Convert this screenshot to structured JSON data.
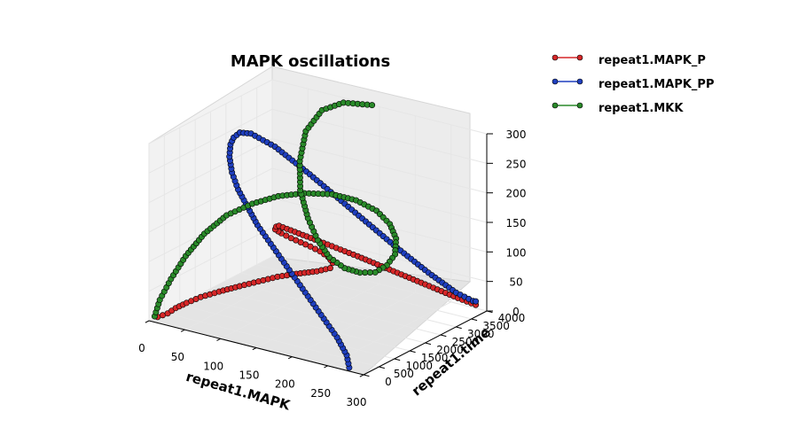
{
  "chart_data": {
    "type": "line",
    "projection": "3d",
    "title": "MAPK oscillations",
    "xlabel": "repeat1.MAPK",
    "ylabel": "repeat1.time",
    "zlabel": "",
    "xlim": [
      0,
      300
    ],
    "ylim": [
      0,
      4000
    ],
    "zlim": [
      0,
      300
    ],
    "x_ticks": [
      "0",
      "50",
      "100",
      "150",
      "200",
      "250",
      "300"
    ],
    "y_ticks": [
      "0",
      "500",
      "1000",
      "1500",
      "2000",
      "2500",
      "3000",
      "3500",
      "4000"
    ],
    "z_ticks": [
      "0",
      "50",
      "100",
      "150",
      "200",
      "250",
      "300"
    ],
    "grid": true,
    "legend_position": "upper-right outside",
    "markers": true,
    "series": [
      {
        "name": "repeat1.MAPK_P",
        "color": "#d62728",
        "points": [
          [
            10,
            50,
            8
          ],
          [
            15,
            260,
            10
          ],
          [
            15,
            520,
            12
          ],
          [
            18,
            800,
            14
          ],
          [
            25,
            1100,
            18
          ],
          [
            40,
            1350,
            25
          ],
          [
            60,
            1550,
            35
          ],
          [
            80,
            1700,
            45
          ],
          [
            100,
            1850,
            55
          ],
          [
            120,
            2000,
            62
          ],
          [
            140,
            2200,
            67
          ],
          [
            150,
            2400,
            70
          ],
          [
            145,
            2600,
            72
          ],
          [
            130,
            2800,
            72
          ],
          [
            110,
            3000,
            70
          ],
          [
            90,
            3150,
            68
          ],
          [
            70,
            3300,
            65
          ],
          [
            50,
            3450,
            62
          ],
          [
            30,
            3600,
            60
          ],
          [
            15,
            3750,
            58
          ],
          [
            10,
            3900,
            57
          ],
          [
            10,
            3990,
            56
          ],
          [
            60,
            3990,
            48
          ],
          [
            120,
            3990,
            38
          ],
          [
            170,
            3990,
            28
          ],
          [
            220,
            3990,
            18
          ],
          [
            260,
            3990,
            10
          ],
          [
            285,
            3990,
            6
          ]
        ]
      },
      {
        "name": "repeat1.MAPK_PP",
        "color": "#1f3fbf",
        "points": [
          [
            280,
            0,
            6
          ],
          [
            270,
            150,
            20
          ],
          [
            250,
            300,
            40
          ],
          [
            225,
            450,
            60
          ],
          [
            200,
            600,
            80
          ],
          [
            175,
            750,
            100
          ],
          [
            150,
            900,
            120
          ],
          [
            125,
            1050,
            140
          ],
          [
            100,
            1200,
            160
          ],
          [
            80,
            1350,
            180
          ],
          [
            60,
            1500,
            200
          ],
          [
            45,
            1650,
            220
          ],
          [
            35,
            1800,
            240
          ],
          [
            30,
            1950,
            255
          ],
          [
            28,
            2100,
            262
          ],
          [
            28,
            2300,
            265
          ],
          [
            35,
            2500,
            260
          ],
          [
            60,
            2700,
            240
          ],
          [
            100,
            2900,
            200
          ],
          [
            150,
            3100,
            150
          ],
          [
            200,
            3300,
            100
          ],
          [
            240,
            3500,
            60
          ],
          [
            270,
            3700,
            30
          ],
          [
            285,
            3900,
            15
          ],
          [
            285,
            3990,
            12
          ]
        ]
      },
      {
        "name": "repeat1.MKK",
        "color": "#2a8a2a",
        "points": [
          [
            8,
            0,
            10
          ],
          [
            10,
            120,
            35
          ],
          [
            20,
            250,
            70
          ],
          [
            35,
            380,
            110
          ],
          [
            55,
            520,
            150
          ],
          [
            80,
            660,
            185
          ],
          [
            110,
            800,
            210
          ],
          [
            140,
            950,
            228
          ],
          [
            170,
            1100,
            238
          ],
          [
            200,
            1300,
            240
          ],
          [
            225,
            1500,
            232
          ],
          [
            245,
            1700,
            215
          ],
          [
            255,
            1900,
            190
          ],
          [
            255,
            2100,
            160
          ],
          [
            245,
            2300,
            125
          ],
          [
            225,
            2500,
            95
          ],
          [
            200,
            2700,
            70
          ],
          [
            170,
            2900,
            55
          ],
          [
            140,
            3100,
            48
          ],
          [
            110,
            3300,
            52
          ],
          [
            85,
            3500,
            68
          ],
          [
            65,
            3650,
            95
          ],
          [
            50,
            3750,
            135
          ],
          [
            45,
            3850,
            180
          ],
          [
            50,
            3930,
            230
          ],
          [
            70,
            3990,
            270
          ],
          [
            100,
            3990,
            292
          ],
          [
            140,
            3990,
            300
          ]
        ]
      }
    ]
  }
}
